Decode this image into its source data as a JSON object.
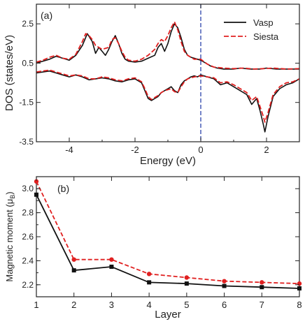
{
  "chart_data": [
    {
      "panel": "(a)",
      "type": "line",
      "xlabel": "Energy (eV)",
      "ylabel": "DOS (states/eV)",
      "xlim": [
        -5,
        3
      ],
      "ylim": [
        -3.5,
        3.5
      ],
      "xticks": [
        -4,
        -2,
        0,
        2
      ],
      "yticks": [
        -3.5,
        -1.5,
        0.5,
        2.5
      ],
      "ytick_labels": [
        "-3.5",
        "-1.5",
        "0.5",
        "2.5"
      ],
      "fermi_line_x": 0,
      "legend_position": "top-right",
      "legend": [
        "Vasp",
        "Siesta"
      ],
      "series": [
        {
          "name": "Vasp",
          "color": "#111111",
          "style": "solid",
          "spin_up": {
            "x": [
              -5,
              -4.8,
              -4.6,
              -4.4,
              -4.2,
              -4.0,
              -3.8,
              -3.6,
              -3.45,
              -3.3,
              -3.2,
              -3.1,
              -3.0,
              -2.9,
              -2.8,
              -2.7,
              -2.6,
              -2.5,
              -2.4,
              -2.3,
              -2.2,
              -2.0,
              -1.8,
              -1.6,
              -1.4,
              -1.3,
              -1.2,
              -1.1,
              -1.0,
              -0.9,
              -0.8,
              -0.7,
              -0.6,
              -0.5,
              -0.4,
              -0.3,
              -0.2,
              -0.1,
              0.0,
              0.1,
              0.3,
              0.5,
              0.7,
              1.0,
              1.2,
              1.5,
              1.8,
              2.0,
              2.3,
              2.6,
              3.0
            ],
            "y": [
              0.5,
              0.6,
              0.7,
              0.85,
              0.75,
              0.65,
              0.9,
              1.4,
              2.0,
              1.6,
              1.0,
              1.3,
              1.1,
              0.9,
              1.2,
              1.6,
              1.9,
              1.5,
              1.0,
              0.7,
              0.6,
              0.55,
              0.6,
              0.75,
              0.9,
              1.3,
              1.5,
              1.1,
              1.5,
              2.1,
              2.5,
              2.3,
              1.8,
              1.2,
              0.9,
              0.8,
              0.75,
              0.7,
              0.65,
              0.55,
              0.35,
              0.25,
              0.2,
              0.2,
              0.25,
              0.2,
              0.2,
              0.25,
              0.2,
              0.2,
              0.2
            ]
          },
          "spin_down": {
            "x": [
              -5,
              -4.8,
              -4.6,
              -4.4,
              -4.2,
              -4.0,
              -3.8,
              -3.6,
              -3.4,
              -3.2,
              -3.0,
              -2.8,
              -2.6,
              -2.4,
              -2.2,
              -2.0,
              -1.8,
              -1.7,
              -1.6,
              -1.5,
              -1.4,
              -1.3,
              -1.2,
              -1.1,
              -1.0,
              -0.9,
              -0.8,
              -0.7,
              -0.6,
              -0.5,
              -0.4,
              -0.3,
              -0.2,
              -0.1,
              0.0,
              0.2,
              0.4,
              0.6,
              0.8,
              1.0,
              1.2,
              1.4,
              1.55,
              1.7,
              1.8,
              1.9,
              1.95,
              2.05,
              2.2,
              2.4,
              2.6,
              2.8,
              3.0
            ],
            "y": [
              0.0,
              0.05,
              0.1,
              0.0,
              -0.1,
              -0.2,
              -0.1,
              -0.2,
              -0.35,
              -0.3,
              -0.25,
              -0.3,
              -0.4,
              -0.45,
              -0.35,
              -0.3,
              -0.5,
              -0.9,
              -1.3,
              -1.4,
              -1.3,
              -1.2,
              -1.0,
              -0.9,
              -0.8,
              -0.7,
              -0.9,
              -1.0,
              -0.6,
              -0.4,
              -0.3,
              -0.2,
              -0.15,
              -0.2,
              -0.1,
              -0.2,
              -0.3,
              -0.6,
              -0.5,
              -0.7,
              -0.9,
              -1.1,
              -1.6,
              -1.3,
              -1.9,
              -2.6,
              -3.0,
              -2.2,
              -1.2,
              -0.8,
              -0.6,
              -0.5,
              -0.3
            ]
          }
        },
        {
          "name": "Siesta",
          "color": "#e02020",
          "style": "dashed",
          "spin_up": {
            "x": [
              -5,
              -4.8,
              -4.6,
              -4.4,
              -4.2,
              -4.0,
              -3.8,
              -3.6,
              -3.5,
              -3.4,
              -3.3,
              -3.2,
              -3.0,
              -2.8,
              -2.7,
              -2.6,
              -2.5,
              -2.4,
              -2.3,
              -2.2,
              -2.0,
              -1.8,
              -1.6,
              -1.4,
              -1.3,
              -1.2,
              -1.1,
              -1.0,
              -0.9,
              -0.8,
              -0.7,
              -0.6,
              -0.5,
              -0.4,
              -0.3,
              -0.2,
              0.0,
              0.2,
              0.4,
              0.7,
              1.0,
              1.3,
              1.6,
              1.9,
              2.2,
              2.6,
              3.0
            ],
            "y": [
              0.55,
              0.65,
              0.8,
              0.9,
              0.75,
              0.7,
              0.95,
              1.6,
              2.0,
              1.9,
              1.7,
              1.4,
              1.2,
              1.3,
              1.7,
              1.8,
              1.5,
              1.1,
              0.8,
              0.65,
              0.6,
              0.7,
              0.9,
              1.2,
              1.5,
              1.7,
              1.6,
              1.9,
              2.3,
              2.6,
              2.2,
              1.6,
              1.1,
              0.9,
              0.8,
              0.7,
              0.7,
              0.45,
              0.3,
              0.25,
              0.22,
              0.25,
              0.2,
              0.22,
              0.25,
              0.2,
              0.22
            ]
          },
          "spin_down": {
            "x": [
              -5,
              -4.8,
              -4.6,
              -4.4,
              -4.2,
              -4.0,
              -3.8,
              -3.6,
              -3.4,
              -3.2,
              -3.0,
              -2.8,
              -2.6,
              -2.4,
              -2.2,
              -2.0,
              -1.8,
              -1.7,
              -1.6,
              -1.5,
              -1.4,
              -1.3,
              -1.2,
              -1.1,
              -1.0,
              -0.9,
              -0.8,
              -0.7,
              -0.6,
              -0.5,
              -0.4,
              -0.2,
              0.0,
              0.2,
              0.4,
              0.6,
              0.8,
              1.0,
              1.2,
              1.4,
              1.55,
              1.7,
              1.8,
              1.9,
              1.95,
              2.05,
              2.2,
              2.4,
              2.6,
              2.8,
              3.0
            ],
            "y": [
              0.05,
              0.1,
              0.15,
              0.05,
              -0.05,
              -0.15,
              -0.1,
              -0.15,
              -0.3,
              -0.3,
              -0.2,
              -0.25,
              -0.35,
              -0.4,
              -0.3,
              -0.25,
              -0.45,
              -0.8,
              -1.2,
              -1.35,
              -1.25,
              -1.15,
              -1.0,
              -0.9,
              -0.85,
              -0.8,
              -0.95,
              -1.0,
              -0.7,
              -0.45,
              -0.3,
              -0.2,
              -0.15,
              -0.2,
              -0.25,
              -0.5,
              -0.45,
              -0.6,
              -0.8,
              -1.0,
              -1.4,
              -1.2,
              -1.7,
              -2.2,
              -2.5,
              -2.0,
              -1.1,
              -0.7,
              -0.5,
              -0.45,
              -0.3
            ]
          }
        }
      ]
    },
    {
      "panel": "(b)",
      "type": "line",
      "xlabel": "Layer",
      "ylabel": "Magnetic moment (μ",
      "ylabel_sub": "B",
      "ylabel_close": ")",
      "xlim": [
        1,
        8
      ],
      "ylim": [
        2.1,
        3.1
      ],
      "xticks": [
        1,
        2,
        3,
        4,
        5,
        6,
        7,
        8
      ],
      "yticks": [
        2.2,
        2.4,
        2.6,
        2.8,
        3.0
      ],
      "ytick_labels": [
        "2.2",
        "2.4",
        "2.6",
        "2.8",
        "3.0"
      ],
      "categories": [
        1,
        2,
        3,
        4,
        5,
        6,
        7,
        8
      ],
      "series": [
        {
          "name": "Vasp",
          "color": "#111111",
          "style": "solid",
          "marker": "square",
          "values": [
            2.95,
            2.32,
            2.35,
            2.22,
            2.21,
            2.19,
            2.18,
            2.17
          ]
        },
        {
          "name": "Siesta",
          "color": "#e02020",
          "style": "dashed",
          "marker": "circle",
          "values": [
            3.06,
            2.41,
            2.41,
            2.29,
            2.26,
            2.23,
            2.22,
            2.21
          ]
        }
      ]
    }
  ]
}
